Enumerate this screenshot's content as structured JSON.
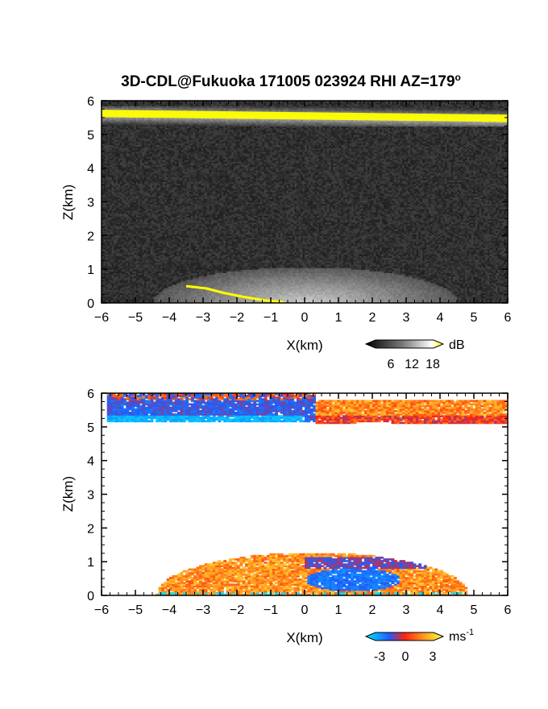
{
  "title_text": "3D-CDL@Fukuoka 171005 023924 RHI AZ=179",
  "title_degree": "o",
  "chart_data": [
    {
      "type": "heatmap",
      "name": "reflectivity",
      "xlabel": "X(km)",
      "ylabel": "Z(km)",
      "xlim": [
        -6,
        6
      ],
      "ylim": [
        0,
        6
      ],
      "xticks": [
        "-6",
        "-5",
        "-4",
        "-3",
        "-2",
        "-1",
        "0",
        "1",
        "2",
        "3",
        "4",
        "5",
        "6"
      ],
      "yticks": [
        "0",
        "1",
        "2",
        "3",
        "4",
        "5",
        "6"
      ],
      "colorbar": {
        "unit": "dB",
        "ticks": [
          "6",
          "12",
          "18"
        ],
        "range": [
          0,
          22
        ]
      },
      "features": [
        {
          "kind": "layer",
          "z_range": [
            5.2,
            5.75
          ],
          "description": "bright band near cloud top, saturated (yellow) along 5.4–5.7 km"
        },
        {
          "kind": "fan",
          "center_x": 0,
          "z_top": 1.0,
          "x_range": [
            -3.5,
            4.5
          ],
          "description": "near-surface brightening fan from the radar at X=0"
        },
        {
          "kind": "ground_clutter_line",
          "x_range": [
            -3.5,
            -0.5
          ],
          "z_range": [
            0,
            0.5
          ]
        }
      ],
      "colors": {
        "background": "#2a2a2a",
        "high": "#ffff00"
      }
    },
    {
      "type": "heatmap",
      "name": "doppler_velocity",
      "xlabel": "X(km)",
      "ylabel": "Z(km)",
      "xlim": [
        -6,
        6
      ],
      "ylim": [
        0,
        6
      ],
      "xticks": [
        "-6",
        "-5",
        "-4",
        "-3",
        "-2",
        "-1",
        "0",
        "1",
        "2",
        "3",
        "4",
        "5",
        "6"
      ],
      "yticks": [
        "0",
        "1",
        "2",
        "3",
        "4",
        "5",
        "6"
      ],
      "colorbar": {
        "unit": "ms",
        "unit_exp": "-1",
        "ticks": [
          "-3",
          "0",
          "3"
        ],
        "range": [
          -4,
          4
        ]
      },
      "features": [
        {
          "kind": "layer",
          "x_range": [
            -5.9,
            0.3
          ],
          "z_range": [
            5.0,
            6.0
          ],
          "velocity": "negative (blue)"
        },
        {
          "kind": "layer",
          "x_range": [
            0.3,
            6.0
          ],
          "z_range": [
            5.0,
            5.75
          ],
          "velocity": "positive (red/orange/yellow)"
        },
        {
          "kind": "boundary_layer",
          "x_range": [
            -4.4,
            4.9
          ],
          "z_range": [
            0,
            1.3
          ],
          "velocity": "mixed, mostly positive with negative core around X=0.5–2.5"
        }
      ],
      "colors": {
        "negative": "#1e5cff",
        "zero": "#ff3a1a",
        "positive": "#ffff00",
        "low_end": "#00e0ff"
      }
    }
  ]
}
